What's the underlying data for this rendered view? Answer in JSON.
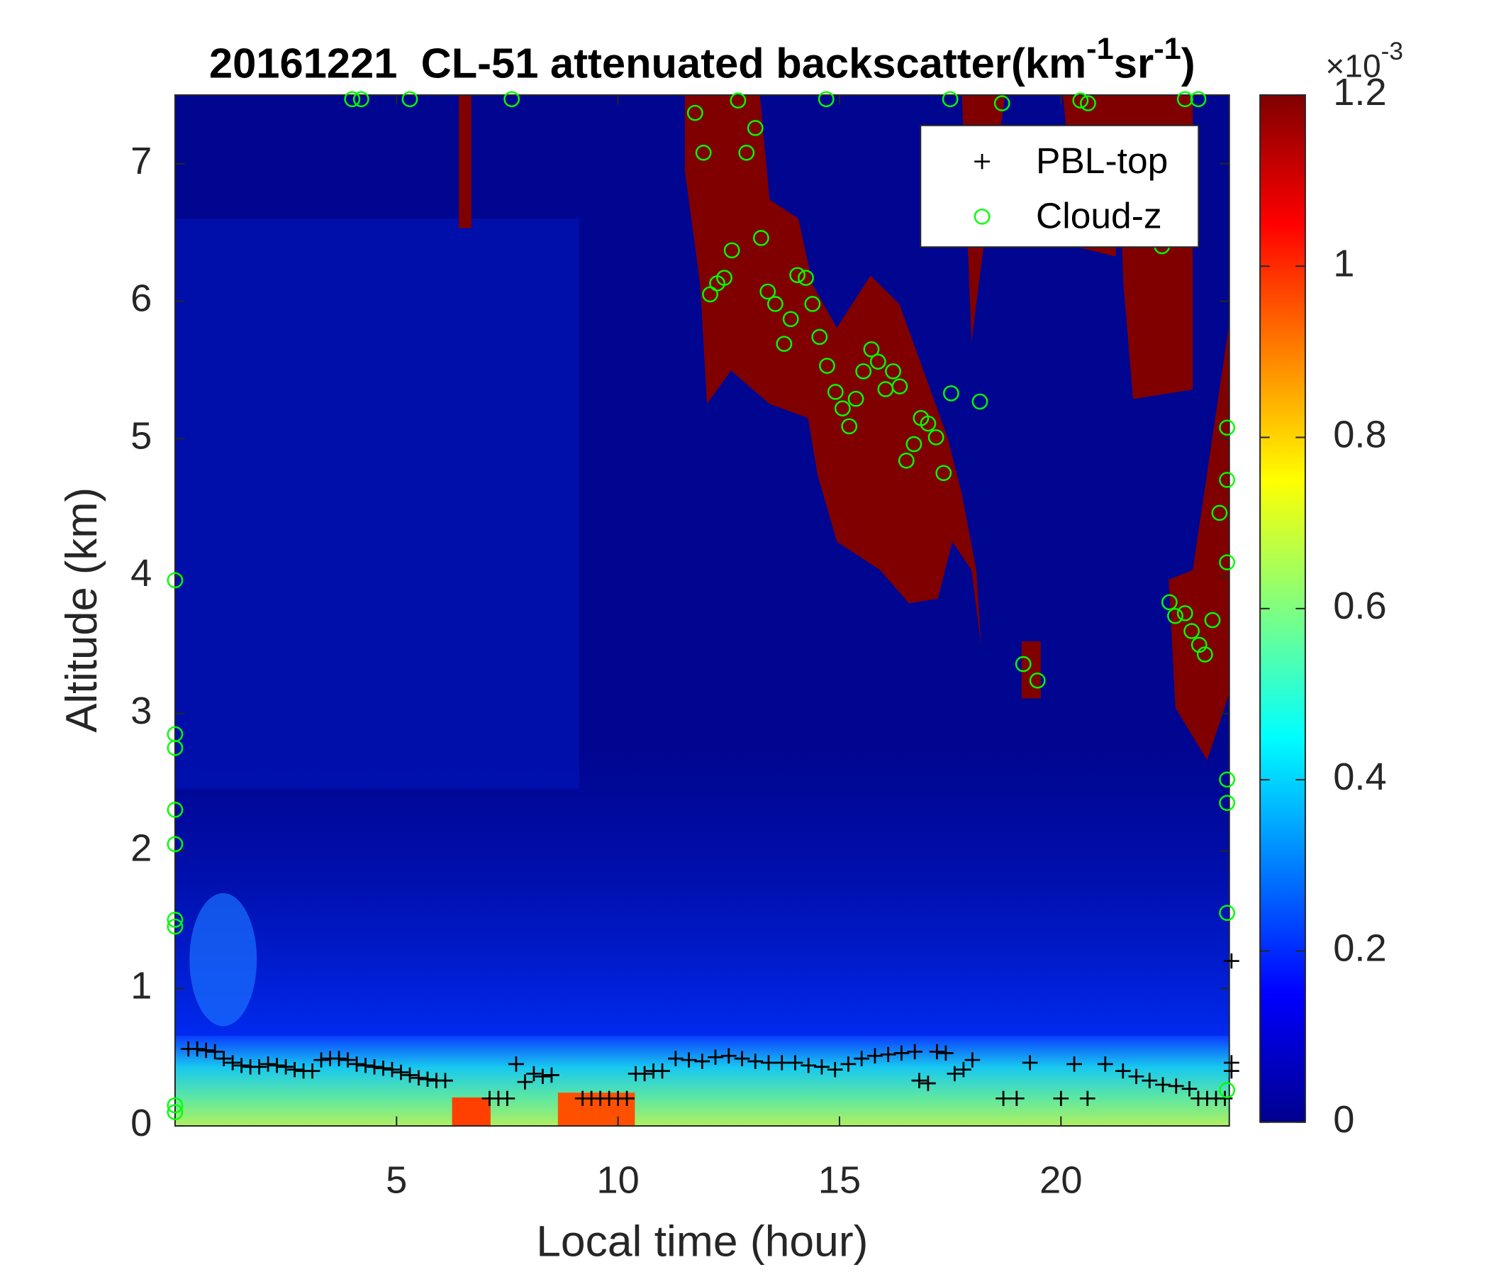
{
  "chart_data": {
    "type": "scatter",
    "title": [
      "20161221  CL-51 attenuated backscatter(km",
      "-1",
      "sr",
      "-1",
      ")"
    ],
    "x_label": "Local time (hour)",
    "y_label": "Altitude (km)",
    "xlim": [
      0,
      23.8
    ],
    "xticks": [
      5,
      10,
      15,
      20
    ],
    "ylim": [
      0,
      7.5
    ],
    "yticks": [
      0,
      1,
      2,
      3,
      4,
      5,
      6,
      7
    ],
    "legend": "northeast",
    "colorbar": {
      "lim": [
        0,
        1.2
      ],
      "ticks": [
        0,
        0.2,
        0.4,
        0.6,
        0.8,
        1,
        1.2
      ],
      "multiplier": [
        "×10",
        "-3"
      ]
    },
    "series": [
      {
        "name": "PBL-top",
        "color": "#000000",
        "marker": "plus",
        "x": [
          0.3,
          0.5,
          0.7,
          0.9,
          1.1,
          1.3,
          1.5,
          1.7,
          1.9,
          2.1,
          2.3,
          2.5,
          2.7,
          2.9,
          3.1,
          3.3,
          3.5,
          3.7,
          3.9,
          4.1,
          4.3,
          4.5,
          4.7,
          4.9,
          5.1,
          5.3,
          5.5,
          5.7,
          5.9,
          6.1,
          7.1,
          7.3,
          7.5,
          7.7,
          7.9,
          8.1,
          8.3,
          8.5,
          9.2,
          9.4,
          9.6,
          9.8,
          10.0,
          10.2,
          10.4,
          10.6,
          10.8,
          11.0,
          11.3,
          11.6,
          11.9,
          12.2,
          12.5,
          12.8,
          13.1,
          13.4,
          13.7,
          14.0,
          14.3,
          14.6,
          14.9,
          15.2,
          15.5,
          15.8,
          16.1,
          16.4,
          16.7,
          16.8,
          17.0,
          17.2,
          17.4,
          17.6,
          17.8,
          18.0,
          18.7,
          19.0,
          19.3,
          20.0,
          20.3,
          20.6,
          21.0,
          21.4,
          21.7,
          22.0,
          22.3,
          22.6,
          22.9,
          23.1,
          23.3,
          23.5,
          23.7,
          23.85,
          23.85,
          23.85
        ],
        "values": [
          0.56,
          0.56,
          0.55,
          0.54,
          0.49,
          0.46,
          0.44,
          0.43,
          0.43,
          0.45,
          0.44,
          0.43,
          0.41,
          0.4,
          0.4,
          0.48,
          0.49,
          0.49,
          0.48,
          0.45,
          0.44,
          0.43,
          0.42,
          0.41,
          0.39,
          0.37,
          0.35,
          0.34,
          0.33,
          0.33,
          0.2,
          0.2,
          0.2,
          0.45,
          0.32,
          0.38,
          0.36,
          0.37,
          0.2,
          0.2,
          0.2,
          0.2,
          0.2,
          0.2,
          0.38,
          0.38,
          0.4,
          0.4,
          0.49,
          0.48,
          0.47,
          0.5,
          0.51,
          0.49,
          0.47,
          0.46,
          0.46,
          0.46,
          0.44,
          0.43,
          0.41,
          0.45,
          0.49,
          0.51,
          0.52,
          0.53,
          0.54,
          0.33,
          0.31,
          0.54,
          0.53,
          0.38,
          0.41,
          0.48,
          0.2,
          0.2,
          0.46,
          0.2,
          0.45,
          0.2,
          0.45,
          0.4,
          0.36,
          0.33,
          0.3,
          0.29,
          0.27,
          0.2,
          0.2,
          0.2,
          0.2,
          1.2,
          0.46,
          0.4
        ]
      },
      {
        "name": "Cloud-z",
        "color": "#00ff00",
        "marker": "circle",
        "x": [
          0.0,
          0.0,
          0.0,
          0.0,
          0.0,
          0.0,
          0.0,
          0.0,
          0.0,
          4.0,
          4.2,
          5.3,
          7.6,
          12.71,
          14.7,
          17.5,
          18.67,
          20.44,
          20.61,
          22.8,
          23.1,
          11.74,
          11.93,
          12.08,
          12.24,
          12.4,
          12.57,
          12.9,
          13.1,
          13.23,
          13.38,
          13.55,
          13.75,
          13.9,
          14.05,
          14.24,
          14.39,
          14.55,
          14.72,
          14.91,
          15.07,
          15.22,
          15.37,
          15.54,
          15.72,
          15.87,
          16.04,
          16.21,
          16.36,
          16.51,
          16.68,
          16.84,
          17.0,
          17.18,
          17.35,
          17.52,
          18.17,
          19.15,
          19.47,
          22.28,
          22.45,
          22.58,
          22.8,
          22.95,
          23.12,
          23.25,
          23.42,
          23.58,
          23.75,
          23.75,
          23.75,
          23.75,
          23.75,
          23.75,
          23.75
        ],
        "values": [
          3.97,
          2.85,
          2.75,
          2.3,
          2.05,
          1.5,
          1.45,
          0.15,
          0.1,
          7.47,
          7.47,
          7.47,
          7.47,
          7.46,
          7.47,
          7.47,
          7.44,
          7.46,
          7.44,
          7.47,
          7.47,
          7.37,
          7.08,
          6.05,
          6.13,
          6.17,
          6.37,
          7.08,
          7.26,
          6.46,
          6.07,
          5.98,
          5.69,
          5.87,
          6.19,
          6.17,
          5.98,
          5.74,
          5.53,
          5.34,
          5.22,
          5.09,
          5.29,
          5.49,
          5.65,
          5.56,
          5.36,
          5.49,
          5.38,
          4.84,
          4.96,
          5.15,
          5.11,
          5.01,
          4.75,
          5.33,
          5.27,
          3.36,
          3.24,
          6.4,
          3.81,
          3.71,
          3.73,
          3.6,
          3.5,
          3.43,
          3.68,
          4.46,
          4.7,
          5.08,
          4.1,
          2.52,
          2.35,
          1.55,
          0.26
        ]
      }
    ]
  }
}
